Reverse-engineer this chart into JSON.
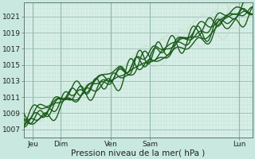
{
  "background_color": "#c8e8e0",
  "plot_bg_color": "#d8f0e8",
  "grid_color_major": "#90b8b0",
  "grid_color_minor": "#b8d8d0",
  "line_color_dark": "#1a5c1a",
  "line_color_thin": "#c8dcc8",
  "ylabel_ticks": [
    1007,
    1009,
    1011,
    1013,
    1015,
    1017,
    1019,
    1021
  ],
  "ylim": [
    1006.0,
    1022.8
  ],
  "xlim": [
    0.0,
    1.0
  ],
  "xlabel": "Pression niveau de la mer( hPa )",
  "day_labels": [
    "Jeu",
    "Dim",
    "Ven",
    "Sam",
    "Lun"
  ],
  "day_positions": [
    0.04,
    0.16,
    0.38,
    0.55,
    0.94
  ],
  "tick_fontsize": 6.5,
  "xlabel_fontsize": 7.5
}
